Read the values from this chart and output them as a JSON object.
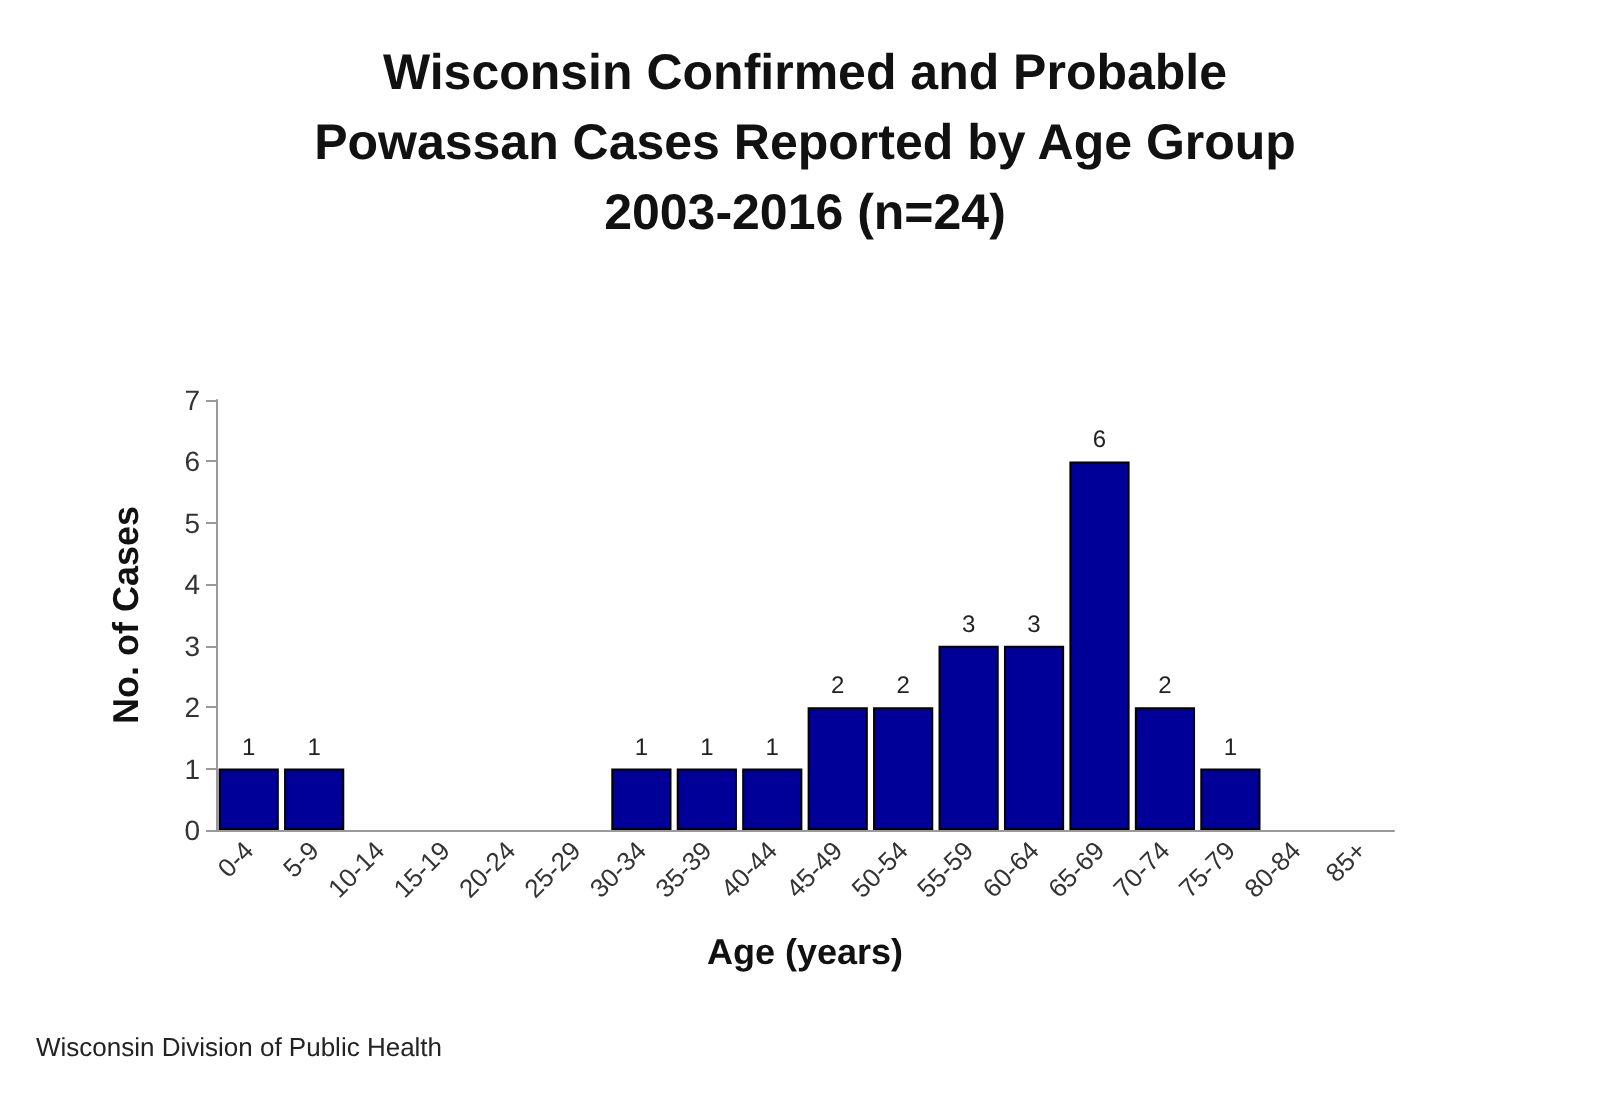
{
  "chart_data": {
    "type": "bar",
    "title": "Wisconsin Confirmed and Probable\nPowassan Cases Reported by Age Group\n2003-2016 (n=24)",
    "xlabel": "Age (years)",
    "ylabel": "No. of Cases",
    "categories": [
      "0-4",
      "5-9",
      "10-14",
      "15-19",
      "20-24",
      "25-29",
      "30-34",
      "35-39",
      "40-44",
      "45-49",
      "50-54",
      "55-59",
      "60-64",
      "65-69",
      "70-74",
      "75-79",
      "80-84",
      "85+"
    ],
    "values": [
      1,
      1,
      0,
      0,
      0,
      0,
      1,
      1,
      1,
      2,
      2,
      3,
      3,
      6,
      2,
      1,
      0,
      0
    ],
    "value_labels": [
      "1",
      "1",
      null,
      null,
      null,
      null,
      "1",
      "1",
      "1",
      "2",
      "2",
      "3",
      "3",
      "6",
      "2",
      "1",
      null,
      null
    ],
    "color": "#000099",
    "ylim": [
      0,
      7
    ],
    "yticks": [
      0,
      1,
      2,
      3,
      4,
      5,
      6,
      7
    ],
    "grid": false,
    "annotations": [
      "Wisconsin Division of Public Health"
    ]
  }
}
